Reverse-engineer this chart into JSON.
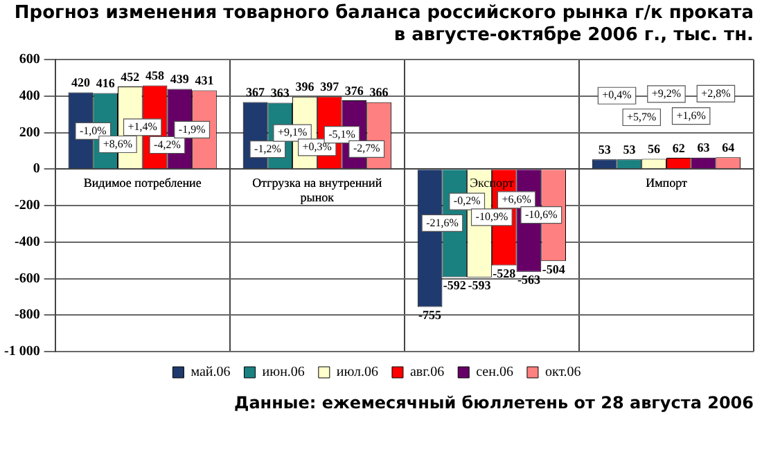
{
  "chart_data": {
    "type": "bar",
    "title": "Прогноз изменения товарного баланса  российского рынка г/к проката  в августе-октябре 2006 г., тыс. тн.",
    "categories": [
      "Видимое потребление",
      "Отгрузка на внутренний рынок",
      "Экспорт",
      "Импорт"
    ],
    "series": [
      {
        "name": "май.06",
        "color": "#1f3a6e",
        "values": [
          420,
          367,
          -755,
          53
        ]
      },
      {
        "name": "июн.06",
        "color": "#1a8080",
        "values": [
          416,
          363,
          -592,
          53
        ]
      },
      {
        "name": "июл.06",
        "color": "#ffffcc",
        "values": [
          452,
          396,
          -593,
          56
        ]
      },
      {
        "name": "авг.06",
        "color": "#ff0000",
        "values": [
          458,
          397,
          -528,
          62
        ]
      },
      {
        "name": "сен.06",
        "color": "#660066",
        "values": [
          439,
          376,
          -563,
          63
        ]
      },
      {
        "name": "окт.06",
        "color": "#ff8080",
        "values": [
          431,
          366,
          -504,
          64
        ]
      }
    ],
    "ylim": [
      -1000,
      600
    ],
    "yticks": [
      600,
      400,
      200,
      0,
      -200,
      -400,
      -600,
      -800,
      {
        "value": -1000,
        "label": "-1 000"
      }
    ],
    "grid": true,
    "legend": "bottom",
    "data_labels": true,
    "annotations": [
      "-1,0%",
      "+8,6%",
      "+1,4%",
      "-4,2%",
      "-1,9%",
      "-1,2%",
      "+9,1%",
      "+0,3%",
      "-5,1%",
      "-2,7%",
      "-21,6%",
      "-0,2%",
      "-10,9%",
      "+6,6%",
      "-10,6%",
      "+0,4%",
      "+5,7%",
      "+9,2%",
      "+1,6%",
      "+2,8%",
      "Данные: ежемесячный бюллетень от 28 августа 2006"
    ]
  }
}
